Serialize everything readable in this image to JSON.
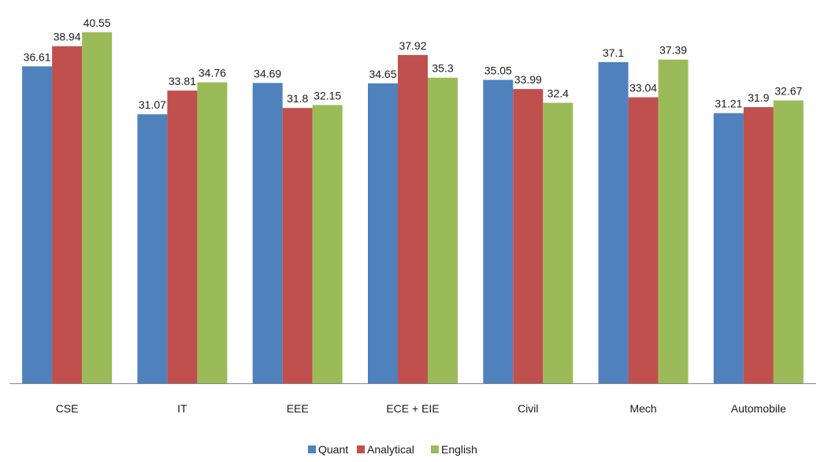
{
  "chart_data": {
    "type": "bar",
    "categories": [
      "CSE",
      "IT",
      "EEE",
      "ECE + EIE",
      "Civil",
      "Mech",
      "Automobile"
    ],
    "series": [
      {
        "name": "Quant",
        "color": "#4F81BD",
        "values": [
          36.61,
          31.07,
          34.69,
          34.65,
          35.05,
          37.1,
          31.21
        ]
      },
      {
        "name": "Analytical",
        "color": "#C0504D",
        "values": [
          38.94,
          33.81,
          31.8,
          37.92,
          33.99,
          33.04,
          31.9
        ]
      },
      {
        "name": "English",
        "color": "#9BBB59",
        "values": [
          40.55,
          34.76,
          32.15,
          35.3,
          32.4,
          37.39,
          32.67
        ]
      }
    ],
    "data_labels": [
      [
        "36.61",
        "31.07",
        "34.69",
        "34.65",
        "35.05",
        "37.1",
        "31.21"
      ],
      [
        "38.94",
        "33.81",
        "31.8",
        "37.92",
        "33.99",
        "33.04",
        "31.9"
      ],
      [
        "40.55",
        "34.76",
        "32.15",
        "35.3",
        "32.4",
        "37.39",
        "32.67"
      ]
    ],
    "ylim": [
      0,
      42
    ],
    "grid": false,
    "legend_position": "bottom",
    "title": "",
    "xlabel": "",
    "ylabel": ""
  }
}
